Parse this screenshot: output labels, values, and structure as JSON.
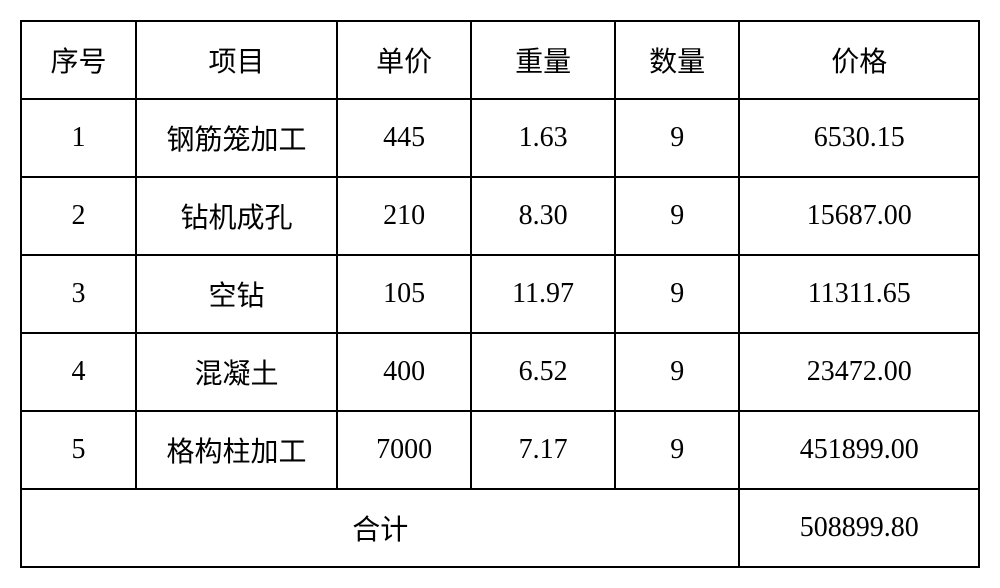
{
  "table": {
    "type": "table",
    "border_color": "#000000",
    "background_color": "#ffffff",
    "text_color": "#000000",
    "font_size": 28,
    "border_width": 2,
    "columns": [
      {
        "key": "seq",
        "label": "序号",
        "width_pct": 12
      },
      {
        "key": "item",
        "label": "项目",
        "width_pct": 21
      },
      {
        "key": "unit_price",
        "label": "单价",
        "width_pct": 14
      },
      {
        "key": "weight",
        "label": "重量",
        "width_pct": 15
      },
      {
        "key": "qty",
        "label": "数量",
        "width_pct": 13
      },
      {
        "key": "total",
        "label": "价格",
        "width_pct": 25
      }
    ],
    "rows": [
      {
        "seq": "1",
        "item": "钢筋笼加工",
        "unit_price": "445",
        "weight": "1.63",
        "qty": "9",
        "total": "6530.15"
      },
      {
        "seq": "2",
        "item": "钻机成孔",
        "unit_price": "210",
        "weight": "8.30",
        "qty": "9",
        "total": "15687.00"
      },
      {
        "seq": "3",
        "item": "空钻",
        "unit_price": "105",
        "weight": "11.97",
        "qty": "9",
        "total": "11311.65"
      },
      {
        "seq": "4",
        "item": "混凝土",
        "unit_price": "400",
        "weight": "6.52",
        "qty": "9",
        "total": "23472.00"
      },
      {
        "seq": "5",
        "item": "格构柱加工",
        "unit_price": "7000",
        "weight": "7.17",
        "qty": "9",
        "total": "451899.00"
      }
    ],
    "footer": {
      "label": "合计",
      "total": "508899.80"
    }
  }
}
